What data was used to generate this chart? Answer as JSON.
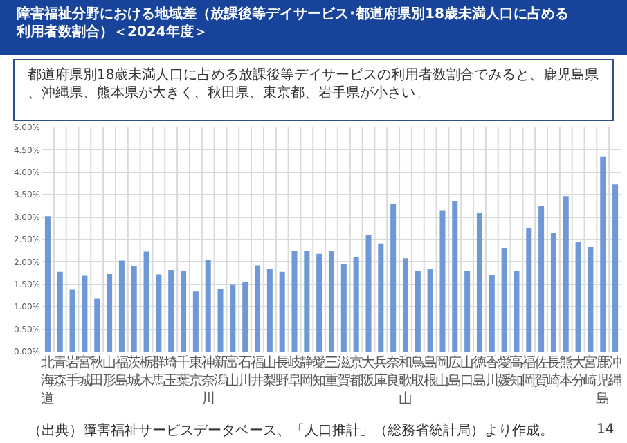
{
  "chart_data": {
    "type": "bar",
    "title": "障害福祉分野における地域差（放課後等デイサービス･都道府県別18歳未満人口に占める利用者数割合）＜2024年度＞",
    "subtitle": "都道府県別18歳未満人口に占める放課後等デイサービスの利用者数割合でみると、鹿児島県、沖縄県、熊本県が大きく、秋田県、東京都、岩手県が小さい。",
    "categories": [
      "北海道",
      "青森",
      "岩手",
      "宮城",
      "秋田",
      "山形",
      "福島",
      "茨城",
      "栃木",
      "群馬",
      "埼玉",
      "千葉",
      "東京",
      "神奈川",
      "新潟",
      "富山",
      "石川",
      "福井",
      "山梨",
      "長野",
      "岐阜",
      "静岡",
      "愛知",
      "三重",
      "滋賀",
      "京都",
      "大阪",
      "兵庫",
      "奈良",
      "和歌山",
      "鳥取",
      "島根",
      "岡山",
      "広島",
      "山口",
      "徳島",
      "香川",
      "愛媛",
      "高知",
      "福岡",
      "佐賀",
      "長崎",
      "熊本",
      "大分",
      "宮崎",
      "鹿児島",
      "沖縄"
    ],
    "values": [
      3.02,
      1.78,
      1.38,
      1.69,
      1.18,
      1.73,
      2.03,
      1.9,
      2.23,
      1.72,
      1.82,
      1.8,
      1.34,
      2.04,
      1.39,
      1.49,
      1.55,
      1.92,
      1.84,
      1.78,
      2.24,
      2.25,
      2.18,
      2.25,
      1.95,
      2.11,
      2.61,
      2.41,
      3.29,
      2.08,
      1.79,
      1.84,
      3.14,
      3.35,
      1.79,
      3.09,
      1.71,
      2.31,
      1.79,
      2.76,
      3.24,
      2.65,
      3.47,
      2.44,
      2.33,
      4.34,
      3.73
    ],
    "color": "#6f98d8",
    "ylim": [
      0,
      5
    ],
    "yticks": [
      {
        "value": 0,
        "label": "0.00%"
      },
      {
        "value": 0.5,
        "label": "0.50%"
      },
      {
        "value": 1,
        "label": "1.00%"
      },
      {
        "value": 1.5,
        "label": "1.50%"
      },
      {
        "value": 2,
        "label": "2.00%"
      },
      {
        "value": 2.5,
        "label": "2.50%"
      },
      {
        "value": 3,
        "label": "3.00%"
      },
      {
        "value": 3.5,
        "label": "3.50%"
      },
      {
        "value": 4,
        "label": "4.00%"
      },
      {
        "value": 4.5,
        "label": "4.50%"
      },
      {
        "value": 5,
        "label": "5.00%"
      }
    ],
    "grid": true,
    "annotations": [
      "（出典）障害福祉サービスデータベース、「人口推計」（総務省統計局）より作成。",
      "14"
    ]
  }
}
